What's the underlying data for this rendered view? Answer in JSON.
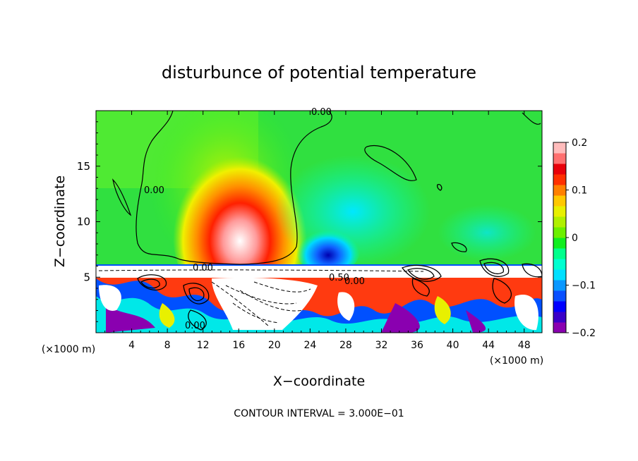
{
  "chart_data": {
    "type": "heatmap",
    "title": "disturbunce of potential temperature",
    "xlabel": "X−coordinate",
    "ylabel": "Z−coordinate",
    "x_unit": "(×1000 m)",
    "x_unit_right": "(×1000 m)",
    "xlim": [
      0,
      50
    ],
    "ylim": [
      0,
      20
    ],
    "x_ticks": [
      4,
      8,
      12,
      16,
      20,
      24,
      28,
      32,
      36,
      40,
      44,
      48
    ],
    "y_ticks": [
      5,
      10,
      15
    ],
    "colorbar": {
      "range": [
        -0.2,
        0.2
      ],
      "labels": [
        {
          "value": 0.2,
          "text": "0.2"
        },
        {
          "value": 0.1,
          "text": "0.1"
        },
        {
          "value": 0,
          "text": "0"
        },
        {
          "value": -0.1,
          "text": "−0.1"
        },
        {
          "value": -0.2,
          "text": "−0.2"
        }
      ],
      "colors": [
        "#8a00b0",
        "#3a00c8",
        "#0000ff",
        "#0a50ff",
        "#0a98ff",
        "#00e0ff",
        "#00ffd0",
        "#00ff8c",
        "#10ee20",
        "#6cf000",
        "#b0f000",
        "#e8f000",
        "#ffc800",
        "#ff8000",
        "#ff3000",
        "#e8000a",
        "#ff7070",
        "#ffbcbc"
      ]
    },
    "contour_labels": [
      "0.00",
      "0.00",
      "0.00",
      "0.00",
      "0.00",
      "0.50"
    ],
    "footer": "CONTOUR INTERVAL = 3.000E−01"
  }
}
